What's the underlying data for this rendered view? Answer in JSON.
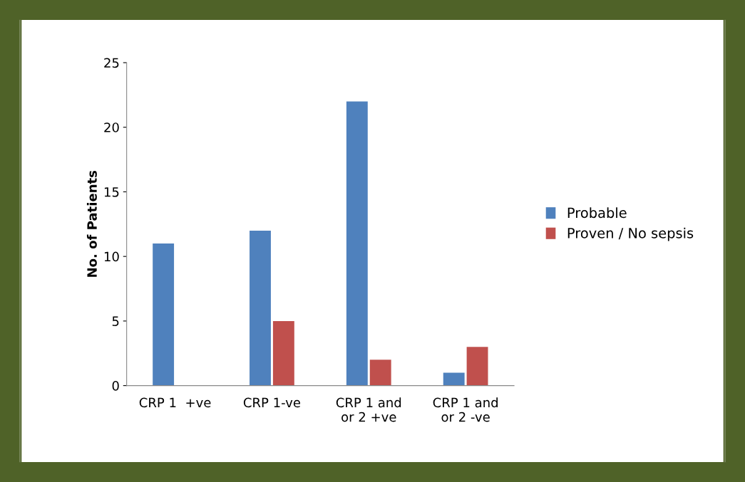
{
  "chart_data": {
    "type": "bar",
    "ylabel": "No. of Patients",
    "categories": [
      "CRP 1  +ve",
      "CRP 1-ve",
      "CRP 1 and\nor 2 +ve",
      "CRP 1 and\nor 2 -ve"
    ],
    "series": [
      {
        "name": "Probable",
        "color": "#4f81bd",
        "values": [
          11,
          12,
          22,
          1
        ]
      },
      {
        "name": "Proven / No sepsis",
        "color": "#c0504d",
        "values": [
          0,
          5,
          2,
          3
        ]
      }
    ],
    "ylim": [
      0,
      25
    ],
    "yticks": [
      0,
      5,
      10,
      15,
      20,
      25
    ],
    "grid": false,
    "legend": "right"
  }
}
